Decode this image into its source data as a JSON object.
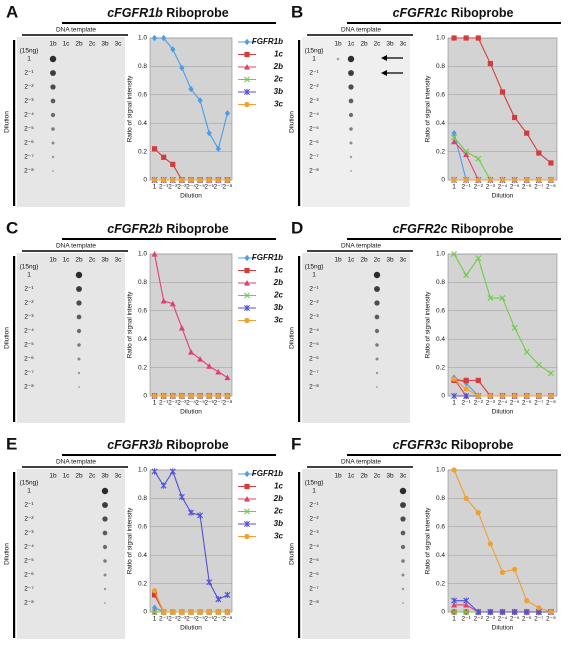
{
  "panels": [
    {
      "letter": "A",
      "probe": "cFGFR1b",
      "suffix": "Riboprobe",
      "blot": {
        "header": "DNA template",
        "columns": [
          "1b",
          "1c",
          "2b",
          "2c",
          "3b",
          "3c"
        ],
        "note": "(15ng)",
        "rows": [
          "1",
          "2⁻¹",
          "2⁻²",
          "2⁻³",
          "2⁻⁴",
          "2⁻⁵",
          "2⁻⁶",
          "2⁻⁷",
          "2⁻⁸"
        ],
        "axis_label": "Dilution"
      }
    },
    {
      "letter": "B",
      "probe": "cFGFR1c",
      "suffix": "Riboprobe",
      "blot": {
        "header": "DNA template",
        "columns": [
          "1b",
          "1c",
          "2b",
          "2c",
          "3b",
          "3c"
        ],
        "note": "(15ng)",
        "rows": [
          "1",
          "2⁻¹",
          "2⁻²",
          "2⁻³",
          "2⁻⁴",
          "2⁻⁵",
          "2⁻⁶",
          "2⁻⁷",
          "2⁻⁸"
        ],
        "axis_label": "Dilution"
      }
    },
    {
      "letter": "C",
      "probe": "cFGFR2b",
      "suffix": "Riboprobe",
      "blot": {
        "header": "DNA template",
        "columns": [
          "1b",
          "1c",
          "2b",
          "2c",
          "3b",
          "3c"
        ],
        "note": "(15ng)",
        "rows": [
          "1",
          "2⁻¹",
          "2⁻²",
          "2⁻³",
          "2⁻⁴",
          "2⁻⁵",
          "2⁻⁶",
          "2⁻⁷",
          "2⁻⁸"
        ],
        "axis_label": "Dilution"
      }
    },
    {
      "letter": "D",
      "probe": "cFGFR2c",
      "suffix": "Riboprobe",
      "blot": {
        "header": "DNA template",
        "columns": [
          "1b",
          "1c",
          "2b",
          "2c",
          "3b",
          "3c"
        ],
        "note": "(15ng)",
        "rows": [
          "1",
          "2⁻¹",
          "2⁻²",
          "2⁻³",
          "2⁻⁴",
          "2⁻⁵",
          "2⁻⁶",
          "2⁻⁷",
          "2⁻⁸"
        ],
        "axis_label": "Dilution"
      }
    },
    {
      "letter": "E",
      "probe": "cFGFR3b",
      "suffix": "Riboprobe",
      "blot": {
        "header": "DNA template",
        "columns": [
          "1b",
          "1c",
          "2b",
          "2c",
          "3b",
          "3c"
        ],
        "note": "(15ng)",
        "rows": [
          "1",
          "2⁻¹",
          "2⁻²",
          "2⁻³",
          "2⁻⁴",
          "2⁻⁵",
          "2⁻⁶",
          "2⁻⁷",
          "2⁻⁸"
        ],
        "axis_label": "Dilution"
      }
    },
    {
      "letter": "F",
      "probe": "cFGFR3c",
      "suffix": "Riboprobe",
      "blot": {
        "header": "DNA template",
        "columns": [
          "1b",
          "1c",
          "2b",
          "2c",
          "3b",
          "3c"
        ],
        "note": "(15ng)",
        "rows": [
          "1",
          "2⁻¹",
          "2⁻²",
          "2⁻³",
          "2⁻⁴",
          "2⁻⁵",
          "2⁻⁶",
          "2⁻⁷",
          "2⁻⁸"
        ],
        "axis_label": "Dilution"
      }
    }
  ],
  "chart_data": [
    {
      "type": "line",
      "categories": [
        "1",
        "2⁻¹",
        "2⁻²",
        "2⁻³",
        "2⁻⁴",
        "2⁻⁵",
        "2⁻⁶",
        "2⁻⁷",
        "2⁻⁸"
      ],
      "x_label": "Dilution",
      "y_label": "Ratio of signal intensity",
      "ylim": [
        0,
        1
      ],
      "yticks": [
        0,
        0.2,
        0.4,
        0.6,
        0.8,
        {
          "value": 1,
          "label": "1.0"
        }
      ],
      "grid": true,
      "legend": "right",
      "series": [
        {
          "name": "FGFR1b",
          "color": "#4a9de8",
          "marker": "diamond",
          "values": [
            1.0,
            1.0,
            0.92,
            0.79,
            0.64,
            0.56,
            0.33,
            0.22,
            0.47
          ]
        },
        {
          "name": "1c",
          "color": "#d23c3c",
          "marker": "square",
          "values": [
            0.22,
            0.16,
            0.11,
            0,
            0,
            0,
            0,
            0,
            0
          ]
        },
        {
          "name": "2b",
          "color": "#e0406f",
          "marker": "triangle",
          "values": [
            0,
            0,
            0,
            0,
            0,
            0,
            0,
            0,
            0
          ]
        },
        {
          "name": "2c",
          "color": "#6fcc4b",
          "marker": "x",
          "values": [
            0,
            0,
            0,
            0,
            0,
            0,
            0,
            0,
            0
          ]
        },
        {
          "name": "3b",
          "color": "#5050d8",
          "marker": "star",
          "values": [
            0,
            0,
            0,
            0,
            0,
            0,
            0,
            0,
            0
          ]
        },
        {
          "name": "3c",
          "color": "#f0a030",
          "marker": "circle",
          "values": [
            0,
            0,
            0,
            0,
            0,
            0,
            0,
            0,
            0
          ]
        }
      ]
    },
    {
      "type": "line",
      "categories": [
        "1",
        "2⁻¹",
        "2⁻²",
        "2⁻³",
        "2⁻⁴",
        "2⁻⁵",
        "2⁻⁶",
        "2⁻⁷",
        "2⁻⁸"
      ],
      "x_label": "Dilution",
      "y_label": "Ratio of signal intensity",
      "ylim": [
        0,
        1
      ],
      "yticks": [
        0,
        0.2,
        0.4,
        0.6,
        0.8,
        {
          "value": 1,
          "label": "1.0"
        }
      ],
      "grid": true,
      "series": [
        {
          "color": "#4a9de8",
          "marker": "diamond",
          "values": [
            0.33,
            0,
            0,
            0,
            0,
            0,
            0,
            0,
            0
          ]
        },
        {
          "color": "#d23c3c",
          "marker": "square",
          "values": [
            1.0,
            1.0,
            1.0,
            0.82,
            0.62,
            0.44,
            0.33,
            0.19,
            0.12
          ]
        },
        {
          "color": "#e0406f",
          "marker": "triangle",
          "values": [
            0.27,
            0.18,
            0,
            0,
            0,
            0,
            0,
            0,
            0
          ]
        },
        {
          "color": "#6fcc4b",
          "marker": "x",
          "values": [
            0.3,
            0.2,
            0.15,
            0,
            0,
            0,
            0,
            0,
            0
          ]
        },
        {
          "color": "#5050d8",
          "marker": "star",
          "values": [
            0,
            0,
            0,
            0,
            0,
            0,
            0,
            0,
            0
          ]
        },
        {
          "color": "#f0a030",
          "marker": "circle",
          "values": [
            0,
            0,
            0,
            0,
            0,
            0,
            0,
            0,
            0
          ]
        }
      ]
    },
    {
      "type": "line",
      "categories": [
        "1",
        "2⁻¹",
        "2⁻²",
        "2⁻³",
        "2⁻⁴",
        "2⁻⁵",
        "2⁻⁶",
        "2⁻⁷",
        "2⁻⁸"
      ],
      "x_label": "Dilution",
      "y_label": "Ratio of signal intensity",
      "ylim": [
        0,
        1
      ],
      "yticks": [
        0,
        0.2,
        0.4,
        0.6,
        0.8,
        {
          "value": 1,
          "label": "1.0"
        }
      ],
      "grid": true,
      "legend": "right",
      "series": [
        {
          "name": "FGFR1b",
          "color": "#4a9de8",
          "marker": "diamond",
          "values": [
            0,
            0,
            0,
            0,
            0,
            0,
            0,
            0,
            0
          ]
        },
        {
          "name": "1c",
          "color": "#d23c3c",
          "marker": "square",
          "values": [
            0,
            0,
            0,
            0,
            0,
            0,
            0,
            0,
            0
          ]
        },
        {
          "name": "2b",
          "color": "#e0406f",
          "marker": "triangle",
          "values": [
            1.0,
            0.67,
            0.65,
            0.48,
            0.31,
            0.26,
            0.21,
            0.17,
            0.13
          ]
        },
        {
          "name": "2c",
          "color": "#6fcc4b",
          "marker": "x",
          "values": [
            0,
            0,
            0,
            0,
            0,
            0,
            0,
            0,
            0
          ]
        },
        {
          "name": "3b",
          "color": "#5050d8",
          "marker": "star",
          "values": [
            0,
            0,
            0,
            0,
            0,
            0,
            0,
            0,
            0
          ]
        },
        {
          "name": "3c",
          "color": "#f0a030",
          "marker": "circle",
          "values": [
            0,
            0,
            0,
            0,
            0,
            0,
            0,
            0,
            0
          ]
        }
      ]
    },
    {
      "type": "line",
      "categories": [
        "1",
        "2⁻¹",
        "2⁻²",
        "2⁻³",
        "2⁻⁴",
        "2⁻⁵",
        "2⁻⁶",
        "2⁻⁷",
        "2⁻⁸"
      ],
      "x_label": "Dilution",
      "y_label": "Ratio of signal intensity",
      "ylim": [
        0,
        1
      ],
      "yticks": [
        0,
        0.2,
        0.4,
        0.6,
        0.8,
        {
          "value": 1,
          "label": "1.0"
        }
      ],
      "grid": true,
      "series": [
        {
          "color": "#4a9de8",
          "marker": "diamond",
          "values": [
            0.13,
            0.09,
            0,
            0,
            0,
            0,
            0,
            0,
            0
          ]
        },
        {
          "color": "#d23c3c",
          "marker": "square",
          "values": [
            0.11,
            0.11,
            0.11,
            0,
            0,
            0,
            0,
            0,
            0
          ]
        },
        {
          "color": "#e0406f",
          "marker": "triangle",
          "values": [
            0.12,
            0,
            0,
            0,
            0,
            0,
            0,
            0,
            0
          ]
        },
        {
          "color": "#6fcc4b",
          "marker": "x",
          "values": [
            1.0,
            0.85,
            0.97,
            0.69,
            0.69,
            0.48,
            0.31,
            0.22,
            0.16
          ]
        },
        {
          "color": "#5050d8",
          "marker": "star",
          "values": [
            0,
            0,
            0,
            0,
            0,
            0,
            0,
            0,
            0
          ]
        },
        {
          "color": "#f0a030",
          "marker": "circle",
          "values": [
            0.12,
            0.05,
            0,
            0,
            0,
            0,
            0,
            0,
            0
          ]
        }
      ]
    },
    {
      "type": "line",
      "categories": [
        "1",
        "2⁻¹",
        "2⁻²",
        "2⁻³",
        "2⁻⁴",
        "2⁻⁵",
        "2⁻⁶",
        "2⁻⁷",
        "2⁻⁸"
      ],
      "x_label": "Dilution",
      "y_label": "Ratio of signal intensity",
      "ylim": [
        0,
        1
      ],
      "yticks": [
        0,
        0.2,
        0.4,
        0.6,
        0.8,
        {
          "value": 1,
          "label": "1.0"
        }
      ],
      "grid": true,
      "legend": "right",
      "series": [
        {
          "name": "FGFR1b",
          "color": "#4a9de8",
          "marker": "diamond",
          "values": [
            0.03,
            0,
            0,
            0,
            0,
            0,
            0,
            0,
            0
          ]
        },
        {
          "name": "1c",
          "color": "#d23c3c",
          "marker": "square",
          "values": [
            0.12,
            0,
            0,
            0,
            0,
            0,
            0,
            0,
            0
          ]
        },
        {
          "name": "2b",
          "color": "#e0406f",
          "marker": "triangle",
          "values": [
            0,
            0,
            0,
            0,
            0,
            0,
            0,
            0,
            0
          ]
        },
        {
          "name": "2c",
          "color": "#6fcc4b",
          "marker": "x",
          "values": [
            0,
            0,
            0,
            0,
            0,
            0,
            0,
            0,
            0
          ]
        },
        {
          "name": "3b",
          "color": "#5050d8",
          "marker": "star",
          "values": [
            0.99,
            0.89,
            0.99,
            0.81,
            0.7,
            0.68,
            0.21,
            0.09,
            0.12
          ]
        },
        {
          "name": "3c",
          "color": "#f0a030",
          "marker": "circle",
          "values": [
            0.15,
            0,
            0,
            0,
            0,
            0,
            0,
            0,
            0
          ]
        }
      ]
    },
    {
      "type": "line",
      "categories": [
        "1",
        "2⁻¹",
        "2⁻²",
        "2⁻³",
        "2⁻⁴",
        "2⁻⁵",
        "2⁻⁶",
        "2⁻⁷",
        "2⁻⁸"
      ],
      "x_label": "Dilution",
      "y_label": "Ratio of signal intensity",
      "ylim": [
        0,
        1
      ],
      "yticks": [
        0,
        0.2,
        0.4,
        0.6,
        0.8,
        {
          "value": 1,
          "label": "1.0"
        }
      ],
      "grid": true,
      "series": [
        {
          "color": "#4a9de8",
          "marker": "diamond",
          "values": [
            0,
            0,
            0,
            0,
            0,
            0,
            0,
            0,
            0
          ]
        },
        {
          "color": "#d23c3c",
          "marker": "square",
          "values": [
            0,
            0,
            0,
            0,
            0,
            0,
            0,
            0,
            0
          ]
        },
        {
          "color": "#e0406f",
          "marker": "triangle",
          "values": [
            0.05,
            0.05,
            0,
            0,
            0,
            0,
            0,
            0,
            0
          ]
        },
        {
          "color": "#6fcc4b",
          "marker": "x",
          "values": [
            0,
            0,
            0,
            0,
            0,
            0,
            0,
            0,
            0
          ]
        },
        {
          "color": "#5050d8",
          "marker": "star",
          "values": [
            0.08,
            0.08,
            0,
            0,
            0,
            0,
            0,
            0,
            0
          ]
        },
        {
          "color": "#f0a030",
          "marker": "circle",
          "values": [
            1.0,
            0.8,
            0.7,
            0.48,
            0.28,
            0.3,
            0.08,
            0.03,
            0
          ]
        }
      ]
    }
  ]
}
